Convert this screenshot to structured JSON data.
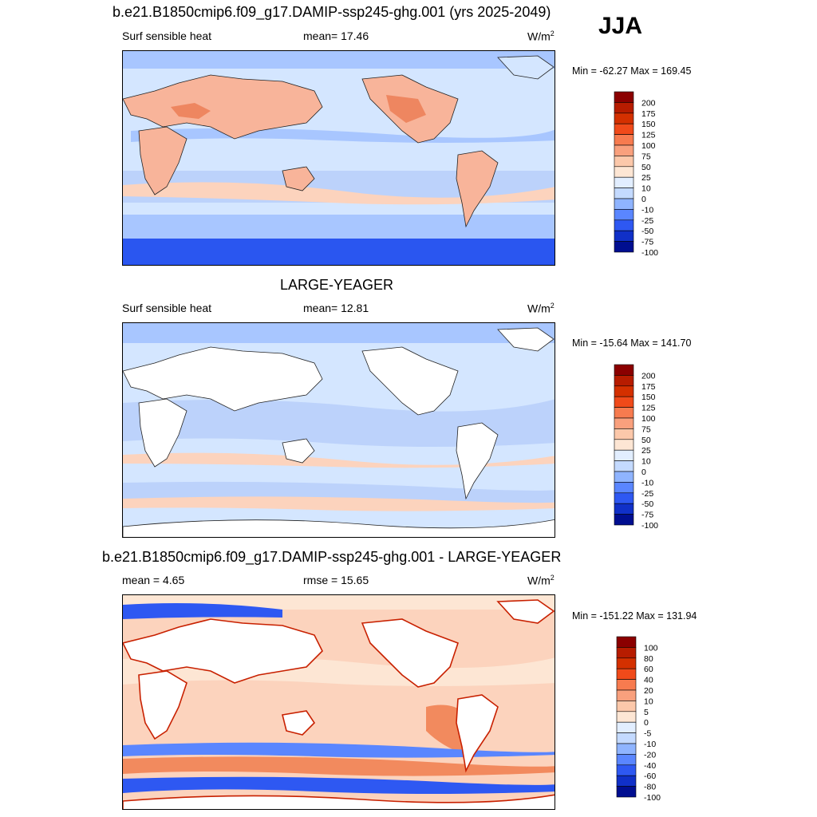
{
  "season": "JJA",
  "panels": [
    {
      "title": "b.e21.B1850cmip6.f09_g17.DAMIP-ssp245-ghg.001 (yrs 2025-2049)",
      "left_label": "Surf sensible heat",
      "center_label": "mean=  17.46",
      "units": "W/m",
      "units_sup": "2",
      "minmax": "Min = -62.27 Max = 169.45",
      "colorbar_labels": [
        "200",
        "175",
        "150",
        "125",
        "100",
        "75",
        "50",
        "25",
        "10",
        "0",
        "-10",
        "-25",
        "-50",
        "-75",
        "-100"
      ]
    },
    {
      "title": "LARGE-YEAGER",
      "left_label": "Surf sensible heat",
      "center_label": "mean=  12.81",
      "units": "W/m",
      "units_sup": "2",
      "minmax": "Min = -15.64 Max = 141.70",
      "colorbar_labels": [
        "200",
        "175",
        "150",
        "125",
        "100",
        "75",
        "50",
        "25",
        "10",
        "0",
        "-10",
        "-25",
        "-50",
        "-75",
        "-100"
      ]
    },
    {
      "title": "b.e21.B1850cmip6.f09_g17.DAMIP-ssp245-ghg.001 - LARGE-YEAGER",
      "left_label": "mean =   4.65",
      "center_label": "rmse =  15.65",
      "units": "W/m",
      "units_sup": "2",
      "minmax": "Min = -151.22 Max = 131.94",
      "colorbar_labels": [
        "100",
        "80",
        "60",
        "40",
        "20",
        "10",
        "5",
        "0",
        "-5",
        "-10",
        "-20",
        "-40",
        "-60",
        "-80",
        "-100"
      ]
    }
  ],
  "colorbar_colors": [
    "#8b0000",
    "#b71c00",
    "#d43000",
    "#f04a1a",
    "#f77b4f",
    "#f9a07d",
    "#fcc8aa",
    "#fde6d4",
    "#e2eeff",
    "#c4daff",
    "#8fb4ff",
    "#5a86ff",
    "#2e58f2",
    "#1030c8",
    "#000e90"
  ],
  "map_colors": {
    "ocean_light": "#d4e6ff",
    "ocean_mid": "#a8c6ff",
    "ocean_deep": "#2a56f0",
    "land_warm": "#f8b49a",
    "land_hot": "#ee8660",
    "land_cool": "#bcd2fb",
    "diff_pos": "#fcd3bd",
    "diff_strong": "#f28a5e",
    "coast_red": "#c82000"
  }
}
